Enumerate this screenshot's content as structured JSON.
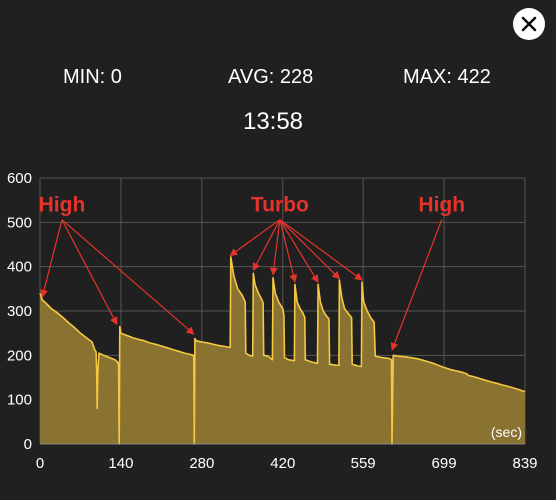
{
  "close_button": {
    "icon": "close-icon"
  },
  "stats": {
    "min": "MIN: 0",
    "avg": "AVG: 228",
    "max": "MAX: 422",
    "elapsed": "13:58"
  },
  "chart_data": {
    "type": "area",
    "x_unit_label": "(sec)",
    "xlim": [
      0,
      839
    ],
    "ylim": [
      0,
      600
    ],
    "x_ticks": [
      "0",
      "140",
      "280",
      "420",
      "559",
      "699",
      "839"
    ],
    "y_ticks": [
      "0",
      "100",
      "200",
      "300",
      "400",
      "500",
      "600"
    ],
    "grid": true,
    "colors": {
      "fill": "#8a7330",
      "line": "#f5c842",
      "grid": "#555555",
      "annotation": "#e5332a"
    },
    "series": [
      {
        "points": [
          [
            0,
            340
          ],
          [
            4,
            325
          ],
          [
            10,
            318
          ],
          [
            20,
            305
          ],
          [
            30,
            296
          ],
          [
            40,
            285
          ],
          [
            50,
            273
          ],
          [
            60,
            262
          ],
          [
            70,
            250
          ],
          [
            80,
            240
          ],
          [
            90,
            230
          ],
          [
            95,
            212
          ],
          [
            97,
            208
          ],
          [
            98,
            160
          ],
          [
            99,
            80
          ],
          [
            100,
            160
          ],
          [
            102,
            205
          ],
          [
            110,
            200
          ],
          [
            120,
            195
          ],
          [
            130,
            190
          ],
          [
            134,
            185
          ],
          [
            136,
            180
          ],
          [
            137,
            0
          ],
          [
            138,
            265
          ],
          [
            140,
            250
          ],
          [
            150,
            245
          ],
          [
            160,
            240
          ],
          [
            170,
            236
          ],
          [
            180,
            233
          ],
          [
            190,
            228
          ],
          [
            200,
            225
          ],
          [
            210,
            221
          ],
          [
            220,
            217
          ],
          [
            230,
            213
          ],
          [
            240,
            209
          ],
          [
            250,
            205
          ],
          [
            260,
            202
          ],
          [
            265,
            200
          ],
          [
            266,
            196
          ],
          [
            267,
            0
          ],
          [
            268,
            238
          ],
          [
            270,
            233
          ],
          [
            280,
            230
          ],
          [
            290,
            228
          ],
          [
            300,
            225
          ],
          [
            310,
            222
          ],
          [
            320,
            220
          ],
          [
            328,
            218
          ],
          [
            329,
            218
          ],
          [
            330,
            422
          ],
          [
            335,
            380
          ],
          [
            342,
            350
          ],
          [
            350,
            335
          ],
          [
            355,
            320
          ],
          [
            356,
            205
          ],
          [
            362,
            200
          ],
          [
            368,
            198
          ],
          [
            369,
            385
          ],
          [
            372,
            360
          ],
          [
            378,
            340
          ],
          [
            384,
            325
          ],
          [
            386,
            318
          ],
          [
            387,
            200
          ],
          [
            395,
            198
          ],
          [
            402,
            190
          ],
          [
            403,
            375
          ],
          [
            407,
            340
          ],
          [
            413,
            320
          ],
          [
            420,
            305
          ],
          [
            422,
            290
          ],
          [
            423,
            195
          ],
          [
            430,
            190
          ],
          [
            440,
            188
          ],
          [
            441,
            360
          ],
          [
            445,
            320
          ],
          [
            450,
            305
          ],
          [
            455,
            295
          ],
          [
            458,
            285
          ],
          [
            459,
            190
          ],
          [
            470,
            185
          ],
          [
            480,
            182
          ],
          [
            481,
            360
          ],
          [
            485,
            320
          ],
          [
            490,
            300
          ],
          [
            495,
            290
          ],
          [
            500,
            282
          ],
          [
            501,
            180
          ],
          [
            510,
            178
          ],
          [
            517,
            177
          ],
          [
            518,
            370
          ],
          [
            522,
            330
          ],
          [
            527,
            305
          ],
          [
            533,
            295
          ],
          [
            539,
            285
          ],
          [
            540,
            180
          ],
          [
            550,
            176
          ],
          [
            556,
            175
          ],
          [
            557,
            365
          ],
          [
            560,
            320
          ],
          [
            566,
            300
          ],
          [
            572,
            285
          ],
          [
            578,
            275
          ],
          [
            580,
            198
          ],
          [
            592,
            195
          ],
          [
            604,
            193
          ],
          [
            608,
            190
          ],
          [
            609,
            0
          ],
          [
            611,
            200
          ],
          [
            620,
            198
          ],
          [
            630,
            197
          ],
          [
            640,
            195
          ],
          [
            650,
            193
          ],
          [
            660,
            190
          ],
          [
            670,
            186
          ],
          [
            680,
            182
          ],
          [
            690,
            177
          ],
          [
            700,
            172
          ],
          [
            710,
            168
          ],
          [
            720,
            165
          ],
          [
            730,
            162
          ],
          [
            739,
            158
          ],
          [
            740,
            155
          ],
          [
            750,
            152
          ],
          [
            760,
            148
          ],
          [
            770,
            144
          ],
          [
            780,
            140
          ],
          [
            790,
            137
          ],
          [
            800,
            133
          ],
          [
            810,
            130
          ],
          [
            820,
            126
          ],
          [
            830,
            122
          ],
          [
            839,
            118
          ]
        ]
      }
    ],
    "annotations": [
      {
        "text": "High",
        "x": 38,
        "y": 524,
        "targets": [
          [
            4,
            332
          ],
          [
            133,
            270
          ],
          [
            266,
            248
          ]
        ]
      },
      {
        "text": "Turbo",
        "x": 415,
        "y": 524,
        "targets": [
          [
            329,
            425
          ],
          [
            369,
            392
          ],
          [
            403,
            382
          ],
          [
            441,
            366
          ],
          [
            481,
            365
          ],
          [
            518,
            373
          ],
          [
            557,
            370
          ]
        ]
      },
      {
        "text": "High",
        "x": 695,
        "y": 524,
        "targets": [
          [
            609,
            212
          ]
        ]
      }
    ]
  }
}
